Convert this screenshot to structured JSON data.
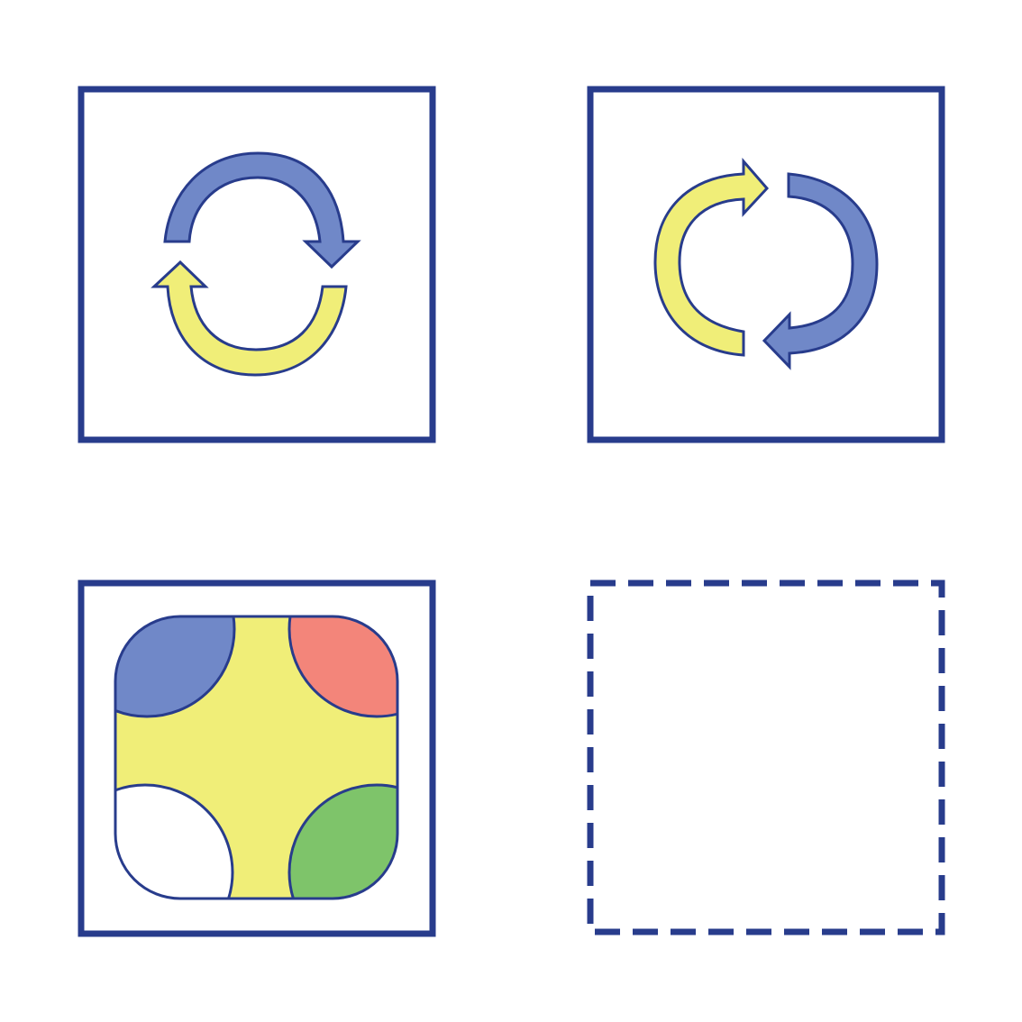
{
  "colors": {
    "stroke": "#283c8c",
    "blue": "#7088c8",
    "yellow": "#f0ee78",
    "red": "#f3857a",
    "green": "#7ec46a",
    "white": "#ffffff"
  },
  "panels": [
    {
      "name": "panel-vertical-cycle",
      "frame": "solid",
      "content": "vertical-cycle-arrows"
    },
    {
      "name": "panel-horizontal-cycle",
      "frame": "solid",
      "content": "horizontal-cycle-arrows"
    },
    {
      "name": "panel-four-corner-tile",
      "frame": "solid",
      "content": "four-corner-tile"
    },
    {
      "name": "panel-empty-slot",
      "frame": "dashed",
      "content": "empty"
    }
  ],
  "tile_corners": {
    "top-left": "blue",
    "top-right": "red",
    "bottom-left": "white",
    "bottom-right": "green",
    "center": "yellow"
  }
}
